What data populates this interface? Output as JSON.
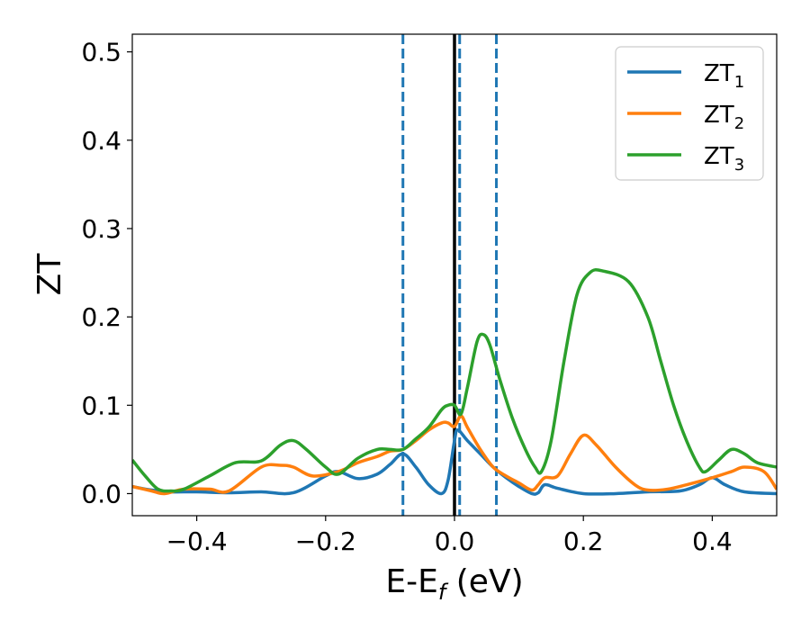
{
  "chart_data": {
    "type": "line",
    "xlabel_main": "E-E",
    "xlabel_sub": "f",
    "xlabel_unit": " (eV)",
    "ylabel": "ZT",
    "xlim": [
      -0.5,
      0.5
    ],
    "ylim": [
      -0.025,
      0.52
    ],
    "x_ticks": [
      -0.4,
      -0.2,
      0.0,
      0.2,
      0.4
    ],
    "x_tick_labels": [
      "−0.4",
      "−0.2",
      "0.0",
      "0.2",
      "0.4"
    ],
    "y_ticks": [
      0.0,
      0.1,
      0.2,
      0.3,
      0.4,
      0.5
    ],
    "y_tick_labels": [
      "0.0",
      "0.1",
      "0.2",
      "0.3",
      "0.4",
      "0.5"
    ],
    "grid": false,
    "legend_placement": "top-right",
    "vertical_lines": [
      {
        "x": 0.0,
        "style": "solid",
        "color": "#000000"
      },
      {
        "x": -0.08,
        "style": "dashed",
        "color": "#1f77b4"
      },
      {
        "x": 0.008,
        "style": "dashed",
        "color": "#1f77b4"
      },
      {
        "x": 0.065,
        "style": "dashed",
        "color": "#1f77b4"
      }
    ],
    "series": [
      {
        "name": "ZT",
        "sub": "1",
        "color": "#1f77b4",
        "x": [
          -0.5,
          -0.47,
          -0.44,
          -0.4,
          -0.35,
          -0.3,
          -0.25,
          -0.2,
          -0.18,
          -0.15,
          -0.12,
          -0.1,
          -0.08,
          -0.06,
          -0.04,
          -0.02,
          -0.01,
          0.0,
          0.005,
          0.02,
          0.04,
          0.06,
          0.08,
          0.1,
          0.12,
          0.13,
          0.14,
          0.16,
          0.2,
          0.25,
          0.3,
          0.35,
          0.38,
          0.4,
          0.42,
          0.45,
          0.5
        ],
        "y": [
          0.008,
          0.004,
          0.002,
          0.002,
          0.001,
          0.002,
          0.001,
          0.02,
          0.025,
          0.017,
          0.022,
          0.033,
          0.045,
          0.03,
          0.01,
          0.0,
          0.015,
          0.06,
          0.072,
          0.06,
          0.045,
          0.03,
          0.018,
          0.008,
          0.0,
          0.001,
          0.01,
          0.006,
          0.0,
          0.0,
          0.002,
          0.003,
          0.01,
          0.018,
          0.01,
          0.002,
          0.0
        ]
      },
      {
        "name": "ZT",
        "sub": "2",
        "color": "#ff7f0e",
        "x": [
          -0.5,
          -0.47,
          -0.45,
          -0.42,
          -0.38,
          -0.35,
          -0.3,
          -0.27,
          -0.25,
          -0.22,
          -0.18,
          -0.15,
          -0.12,
          -0.1,
          -0.08,
          -0.06,
          -0.04,
          -0.02,
          -0.01,
          0.0,
          0.01,
          0.02,
          0.04,
          0.06,
          0.08,
          0.1,
          0.12,
          0.13,
          0.14,
          0.16,
          0.18,
          0.2,
          0.22,
          0.25,
          0.28,
          0.3,
          0.33,
          0.36,
          0.4,
          0.43,
          0.45,
          0.48,
          0.5
        ],
        "y": [
          0.008,
          0.003,
          0.0,
          0.005,
          0.005,
          0.003,
          0.03,
          0.032,
          0.03,
          0.02,
          0.025,
          0.035,
          0.042,
          0.048,
          0.05,
          0.06,
          0.072,
          0.08,
          0.08,
          0.076,
          0.088,
          0.075,
          0.05,
          0.03,
          0.02,
          0.012,
          0.004,
          0.01,
          0.018,
          0.02,
          0.045,
          0.066,
          0.055,
          0.03,
          0.01,
          0.004,
          0.005,
          0.01,
          0.018,
          0.025,
          0.03,
          0.025,
          0.005
        ]
      },
      {
        "name": "ZT",
        "sub": "3",
        "color": "#2ca02c",
        "x": [
          -0.5,
          -0.48,
          -0.46,
          -0.44,
          -0.42,
          -0.38,
          -0.34,
          -0.3,
          -0.27,
          -0.25,
          -0.23,
          -0.2,
          -0.18,
          -0.15,
          -0.12,
          -0.1,
          -0.08,
          -0.06,
          -0.04,
          -0.02,
          -0.01,
          0.0,
          0.01,
          0.02,
          0.035,
          0.045,
          0.055,
          0.07,
          0.09,
          0.11,
          0.125,
          0.135,
          0.15,
          0.17,
          0.19,
          0.21,
          0.23,
          0.27,
          0.3,
          0.32,
          0.34,
          0.36,
          0.38,
          0.39,
          0.41,
          0.43,
          0.45,
          0.47,
          0.5
        ],
        "y": [
          0.038,
          0.02,
          0.005,
          0.003,
          0.005,
          0.02,
          0.035,
          0.037,
          0.055,
          0.06,
          0.05,
          0.03,
          0.022,
          0.04,
          0.05,
          0.05,
          0.05,
          0.062,
          0.075,
          0.095,
          0.1,
          0.1,
          0.09,
          0.12,
          0.172,
          0.18,
          0.168,
          0.13,
          0.085,
          0.05,
          0.03,
          0.025,
          0.06,
          0.15,
          0.225,
          0.25,
          0.252,
          0.24,
          0.2,
          0.15,
          0.1,
          0.06,
          0.03,
          0.025,
          0.038,
          0.05,
          0.045,
          0.035,
          0.03
        ]
      }
    ]
  }
}
